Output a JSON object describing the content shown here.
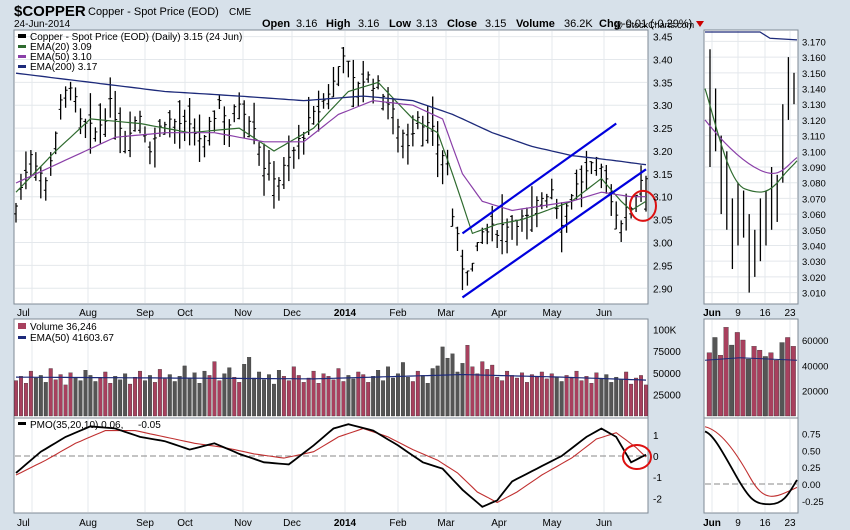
{
  "header": {
    "symbol": "$COPPER",
    "name": "Copper - Spot Price (EOD)",
    "exchange": "CME",
    "date": "24-Jun-2014",
    "open_label": "Open",
    "open": "3.16",
    "high_label": "High",
    "high": "3.16",
    "low_label": "Low",
    "low": "3.13",
    "close_label": "Close",
    "close": "3.15",
    "volume_label": "Volume",
    "volume": "36.2K",
    "chg_label": "Chg",
    "chg": "-0.01 (-0.29%)",
    "watermark": "@ StockCharts.com"
  },
  "colors": {
    "background": "#d7e1ea",
    "panel": "#ffffff",
    "grid": "#e4e8ec",
    "price_bar": "#000000",
    "ema20": "#2f6b2f",
    "ema50": "#8a3fa8",
    "ema200": "#1d2a7a",
    "channel": "#0000dd",
    "circle": "#dd1111",
    "vol_up": "#a8405e",
    "vol_down": "#555555",
    "pmo": "#000000",
    "pmo_signal": "#c03030"
  },
  "price_panel": {
    "legend": [
      "Copper - Spot Price (EOD) (Daily) 3.15 (24 Jun)",
      "EMA(20) 3.09",
      "EMA(50) 3.10",
      "EMA(200) 3.17"
    ],
    "y_ticks": [
      "3.45",
      "3.40",
      "3.35",
      "3.30",
      "3.25",
      "3.20",
      "3.15",
      "3.10",
      "3.05",
      "3.00",
      "2.95",
      "2.90"
    ],
    "ylim": [
      2.87,
      3.46
    ]
  },
  "zoom_panel": {
    "y_ticks": [
      "3.170",
      "3.160",
      "3.150",
      "3.140",
      "3.130",
      "3.120",
      "3.110",
      "3.100",
      "3.090",
      "3.080",
      "3.070",
      "3.060",
      "3.050",
      "3.040",
      "3.030",
      "3.020",
      "3.010"
    ],
    "ylim": [
      3.004,
      3.176
    ],
    "x_ticks": [
      "Jun",
      "9",
      "16",
      "23"
    ]
  },
  "volume_panel": {
    "legend": [
      "Volume 36,246",
      "EMA(50) 41603.67"
    ],
    "y_ticks": [
      "100K",
      "75000",
      "50000",
      "25000"
    ],
    "zoom_y_ticks": [
      "60000",
      "40000",
      "20000"
    ]
  },
  "pmo_panel": {
    "legend_prefix": "PMO(35,20,10) 0.06,",
    "legend_signal": "-0.05",
    "y_ticks": [
      "1",
      "0",
      "-1",
      "-2"
    ],
    "zoom_y_ticks": [
      "0.75",
      "0.50",
      "0.25",
      "0.00",
      "-0.25"
    ]
  },
  "x_axis": {
    "labels": [
      "Jul",
      "Aug",
      "Sep",
      "Oct",
      "Nov",
      "Dec",
      "2014",
      "Feb",
      "Mar",
      "Apr",
      "May",
      "Jun"
    ]
  },
  "chart_data": {
    "type": "line",
    "title": "$COPPER Copper - Spot Price (EOD) CME",
    "x_labels": [
      "Jul",
      "Aug",
      "Sep",
      "Oct",
      "Nov",
      "Dec",
      "2014",
      "Feb",
      "Mar",
      "Apr",
      "May",
      "Jun"
    ],
    "series": [
      {
        "name": "Copper - Spot Price (EOD) (Daily)",
        "points": [
          [
            0,
            3.08
          ],
          [
            3,
            3.2
          ],
          [
            6,
            3.13
          ],
          [
            9,
            3.3
          ],
          [
            11,
            3.35
          ],
          [
            13,
            3.26
          ],
          [
            16,
            3.24
          ],
          [
            19,
            3.3
          ],
          [
            22,
            3.24
          ],
          [
            25,
            3.28
          ],
          [
            27,
            3.21
          ],
          [
            30,
            3.27
          ],
          [
            33,
            3.26
          ],
          [
            36,
            3.24
          ],
          [
            38,
            3.22
          ],
          [
            41,
            3.31
          ],
          [
            43,
            3.26
          ],
          [
            45,
            3.31
          ],
          [
            48,
            3.26
          ],
          [
            50,
            3.17
          ],
          [
            53,
            3.14
          ],
          [
            56,
            3.2
          ],
          [
            59,
            3.26
          ],
          [
            61,
            3.29
          ],
          [
            64,
            3.35
          ],
          [
            66,
            3.42
          ],
          [
            68,
            3.35
          ],
          [
            71,
            3.36
          ],
          [
            74,
            3.33
          ],
          [
            76,
            3.28
          ],
          [
            79,
            3.22
          ],
          [
            81,
            3.28
          ],
          [
            84,
            3.24
          ],
          [
            87,
            3.17
          ],
          [
            88,
            3.06
          ],
          [
            90,
            2.95
          ],
          [
            92,
            2.95
          ],
          [
            94,
            3.02
          ],
          [
            97,
            3.03
          ],
          [
            100,
            3.05
          ],
          [
            103,
            3.05
          ],
          [
            106,
            3.1
          ],
          [
            108,
            3.12
          ],
          [
            110,
            3.05
          ],
          [
            112,
            3.11
          ],
          [
            115,
            3.15
          ],
          [
            117,
            3.17
          ],
          [
            119,
            3.15
          ],
          [
            120,
            3.09
          ],
          [
            122,
            3.05
          ],
          [
            124,
            3.08
          ],
          [
            126,
            3.14
          ],
          [
            127,
            3.15
          ]
        ]
      },
      {
        "name": "EMA(20)",
        "points": [
          [
            0,
            3.11
          ],
          [
            8,
            3.2
          ],
          [
            15,
            3.27
          ],
          [
            25,
            3.26
          ],
          [
            35,
            3.24
          ],
          [
            45,
            3.25
          ],
          [
            52,
            3.2
          ],
          [
            60,
            3.25
          ],
          [
            67,
            3.33
          ],
          [
            73,
            3.35
          ],
          [
            80,
            3.27
          ],
          [
            85,
            3.24
          ],
          [
            88,
            3.15
          ],
          [
            92,
            3.02
          ],
          [
            97,
            3.04
          ],
          [
            102,
            3.05
          ],
          [
            107,
            3.07
          ],
          [
            112,
            3.09
          ],
          [
            118,
            3.14
          ],
          [
            122,
            3.09
          ],
          [
            124,
            3.07
          ],
          [
            127,
            3.09
          ]
        ]
      },
      {
        "name": "EMA(50)",
        "points": [
          [
            0,
            3.13
          ],
          [
            10,
            3.18
          ],
          [
            20,
            3.23
          ],
          [
            30,
            3.24
          ],
          [
            40,
            3.24
          ],
          [
            50,
            3.22
          ],
          [
            58,
            3.22
          ],
          [
            65,
            3.28
          ],
          [
            72,
            3.31
          ],
          [
            80,
            3.3
          ],
          [
            86,
            3.27
          ],
          [
            90,
            3.15
          ],
          [
            94,
            3.09
          ],
          [
            100,
            3.07
          ],
          [
            106,
            3.08
          ],
          [
            112,
            3.09
          ],
          [
            118,
            3.11
          ],
          [
            124,
            3.1
          ],
          [
            127,
            3.1
          ]
        ]
      },
      {
        "name": "EMA(200)",
        "points": [
          [
            0,
            3.37
          ],
          [
            15,
            3.35
          ],
          [
            30,
            3.33
          ],
          [
            45,
            3.32
          ],
          [
            58,
            3.31
          ],
          [
            70,
            3.32
          ],
          [
            80,
            3.31
          ],
          [
            88,
            3.28
          ],
          [
            96,
            3.24
          ],
          [
            104,
            3.21
          ],
          [
            112,
            3.19
          ],
          [
            120,
            3.18
          ],
          [
            127,
            3.17
          ]
        ]
      },
      {
        "name": "Volume",
        "values": [
          41000,
          46000,
          38000,
          52000,
          44000,
          47000,
          39000,
          55000,
          42000,
          48000,
          36000,
          50000,
          45000,
          41000,
          53000,
          47000,
          40000,
          44000,
          51000,
          38000,
          46000,
          42000,
          49000,
          37000,
          45000,
          52000,
          41000,
          47000,
          39000,
          54000,
          43000,
          48000,
          40000,
          46000,
          58000,
          44000,
          50000,
          38000,
          52000,
          47000,
          63000,
          41000,
          49000,
          56000,
          45000,
          39000,
          60000,
          68000,
          44000,
          51000,
          42000,
          48000,
          37000,
          53000,
          46000,
          41000,
          57000,
          47000,
          39000,
          44000,
          52000,
          38000,
          49000,
          46000,
          42000,
          55000,
          40000,
          47000,
          43000,
          51000,
          48000,
          39000,
          46000,
          53000,
          41000,
          57000,
          44000,
          49000,
          62000,
          45000,
          40000,
          52000,
          47000,
          38000,
          55000,
          58000,
          80000,
          67000,
          72000,
          51000,
          61000,
          82000,
          57000,
          49000,
          63000,
          54000,
          59000,
          45000,
          41000,
          52000,
          47000,
          44000,
          50000,
          39000,
          48000,
          46000,
          51000,
          43000,
          49000,
          45000,
          40000,
          47000,
          44000,
          52000,
          41000,
          46000,
          38000,
          50000,
          43000,
          48000,
          39000,
          45000,
          42000,
          51000,
          37000,
          44000,
          47000,
          36000
        ]
      },
      {
        "name": "EMA(50)",
        "values_k": [
          [
            0,
            45
          ],
          [
            30,
            44
          ],
          [
            60,
            43
          ],
          [
            90,
            48
          ],
          [
            110,
            45
          ],
          [
            127,
            41.6
          ]
        ]
      },
      {
        "name": "PMO(35,20,10)",
        "points": [
          [
            0,
            -0.8
          ],
          [
            5,
            0.2
          ],
          [
            10,
            0.9
          ],
          [
            15,
            1.4
          ],
          [
            20,
            1.3
          ],
          [
            25,
            0.9
          ],
          [
            30,
            0.7
          ],
          [
            35,
            0.3
          ],
          [
            40,
            0.6
          ],
          [
            45,
            0.1
          ],
          [
            50,
            -0.3
          ],
          [
            55,
            -0.4
          ],
          [
            60,
            0.5
          ],
          [
            64,
            1.3
          ],
          [
            67,
            1.5
          ],
          [
            72,
            1.2
          ],
          [
            77,
            0.5
          ],
          [
            82,
            -0.3
          ],
          [
            86,
            -0.6
          ],
          [
            90,
            -1.6
          ],
          [
            94,
            -2.4
          ],
          [
            97,
            -2.1
          ],
          [
            100,
            -1.2
          ],
          [
            105,
            -0.6
          ],
          [
            110,
            0.0
          ],
          [
            115,
            0.9
          ],
          [
            118,
            1.3
          ],
          [
            121,
            0.9
          ],
          [
            124,
            -0.3
          ],
          [
            127,
            0.06
          ]
        ]
      },
      {
        "name": "Signal",
        "points": [
          [
            0,
            -0.9
          ],
          [
            6,
            -0.2
          ],
          [
            12,
            0.6
          ],
          [
            18,
            1.2
          ],
          [
            24,
            1.2
          ],
          [
            30,
            0.9
          ],
          [
            36,
            0.6
          ],
          [
            42,
            0.4
          ],
          [
            48,
            0.1
          ],
          [
            54,
            -0.1
          ],
          [
            60,
            0.2
          ],
          [
            65,
            0.9
          ],
          [
            70,
            1.3
          ],
          [
            75,
            0.9
          ],
          [
            80,
            0.3
          ],
          [
            85,
            -0.2
          ],
          [
            89,
            -0.8
          ],
          [
            93,
            -1.7
          ],
          [
            97,
            -2.2
          ],
          [
            101,
            -1.7
          ],
          [
            106,
            -0.9
          ],
          [
            112,
            -0.1
          ],
          [
            117,
            0.8
          ],
          [
            121,
            1.1
          ],
          [
            125,
            0.4
          ],
          [
            127,
            -0.05
          ]
        ]
      }
    ]
  }
}
